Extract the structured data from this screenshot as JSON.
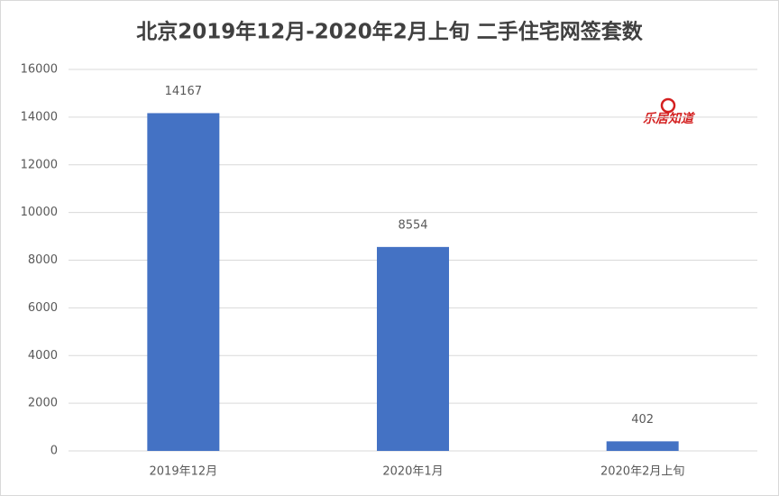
{
  "chart_data": {
    "type": "bar",
    "title": "北京2019年12月-2020年2月上旬 二手住宅网签套数",
    "categories": [
      "2019年12月",
      "2020年1月",
      "2020年2月上旬"
    ],
    "values": [
      14167,
      8554,
      402
    ],
    "color": "#4472c4",
    "ylim": [
      0,
      16000
    ],
    "yticks": [
      0,
      2000,
      4000,
      6000,
      8000,
      10000,
      12000,
      14000,
      16000
    ],
    "grid": true,
    "watermark": "乐居知道"
  }
}
